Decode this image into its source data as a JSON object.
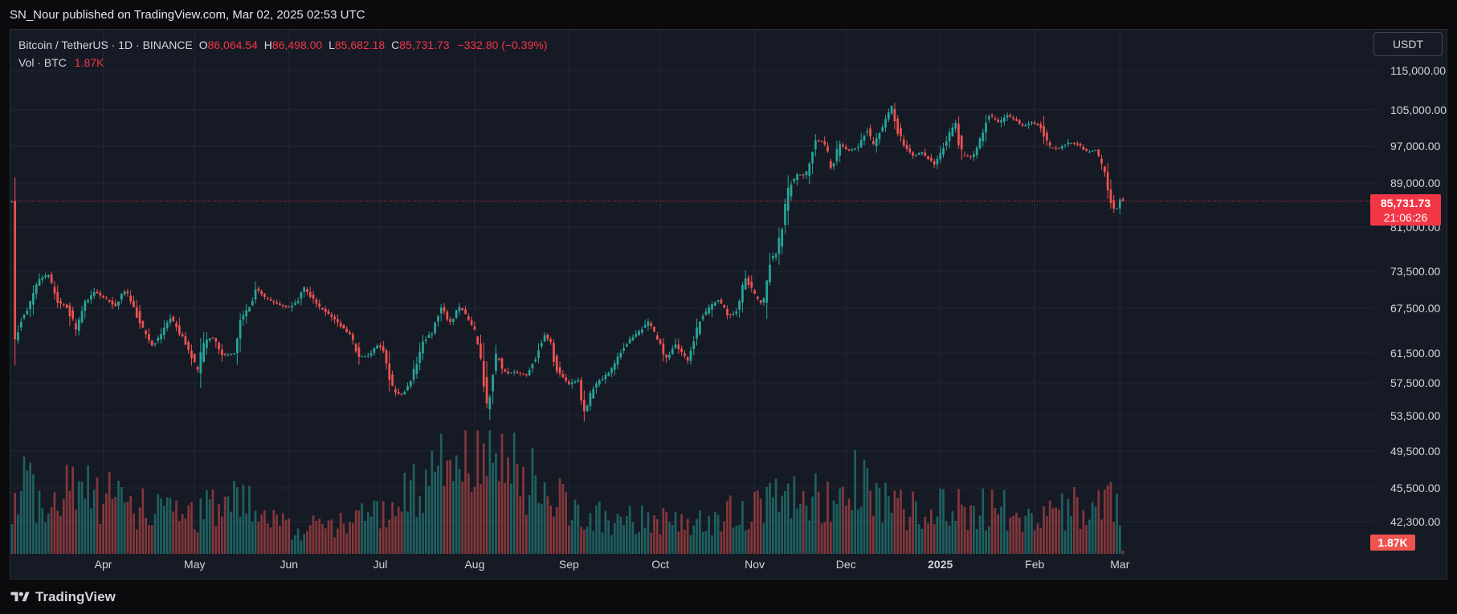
{
  "header": {
    "publisher_text": "SN_Nour published on TradingView.com, Mar 02, 2025 02:53 UTC"
  },
  "legend": {
    "symbol": "Bitcoin / TetherUS · 1D · BINANCE",
    "open_label": "O",
    "open": "86,064.54",
    "high_label": "H",
    "high": "86,498.00",
    "low_label": "L",
    "low": "85,682.18",
    "close_label": "C",
    "close": "85,731.73",
    "change": "−332.80 (−0.39%)",
    "vol_label": "Vol · BTC",
    "vol_value": "1.87K"
  },
  "currency": "USDT",
  "footer": {
    "brand": "TradingView"
  },
  "colors": {
    "up": "#26a69a",
    "down": "#ef5350",
    "price_tag": "#f23645",
    "grid": "#232734"
  },
  "chart_data": {
    "type": "candlestick",
    "symbol": "Bitcoin / TetherUS",
    "interval": "1D",
    "exchange": "BINANCE",
    "y_ticks": [
      115000,
      105000,
      97000,
      89000,
      81000,
      73500,
      67500,
      61500,
      57500,
      53500,
      49500,
      45500,
      42300
    ],
    "y_tick_labels": [
      "115,000.00",
      "105,000.00",
      "97,000.00",
      "89,000.00",
      "81,000.00",
      "73,500.00",
      "67,500.00",
      "61,500.00",
      "57,500.00",
      "53,500.00",
      "49,500.00",
      "45,500.00",
      "42,300.00"
    ],
    "x_ticks": [
      {
        "label": "Apr",
        "date": "2024-04-01"
      },
      {
        "label": "May",
        "date": "2024-05-01"
      },
      {
        "label": "Jun",
        "date": "2024-06-01"
      },
      {
        "label": "Jul",
        "date": "2024-07-01"
      },
      {
        "label": "Aug",
        "date": "2024-08-01"
      },
      {
        "label": "Sep",
        "date": "2024-09-01"
      },
      {
        "label": "Oct",
        "date": "2024-10-01"
      },
      {
        "label": "Nov",
        "date": "2024-11-01"
      },
      {
        "label": "Dec",
        "date": "2024-12-01"
      },
      {
        "label": "2025",
        "date": "2025-01-01"
      },
      {
        "label": "Feb",
        "date": "2025-02-01"
      },
      {
        "label": "Mar",
        "date": "2025-03-01"
      }
    ],
    "date_range": [
      "2024-03-02",
      "2025-03-02"
    ],
    "last_price": 85731.73,
    "last_price_label": "85,731.73",
    "countdown": "21:06:26",
    "volume_label": "1.87K",
    "volume_value": 1870,
    "close_path": [
      {
        "date": "2024-03-02",
        "close": 62000
      },
      {
        "date": "2024-03-05",
        "close": 66000
      },
      {
        "date": "2024-03-08",
        "close": 68200
      },
      {
        "date": "2024-03-11",
        "close": 72100
      },
      {
        "date": "2024-03-14",
        "close": 73000
      },
      {
        "date": "2024-03-17",
        "close": 68400
      },
      {
        "date": "2024-03-20",
        "close": 67900
      },
      {
        "date": "2024-03-23",
        "close": 64500
      },
      {
        "date": "2024-03-26",
        "close": 68500
      },
      {
        "date": "2024-03-29",
        "close": 70200
      },
      {
        "date": "2024-04-02",
        "close": 69000
      },
      {
        "date": "2024-04-05",
        "close": 67800
      },
      {
        "date": "2024-04-08",
        "close": 70500
      },
      {
        "date": "2024-04-10",
        "close": 69000
      },
      {
        "date": "2024-04-13",
        "close": 65500
      },
      {
        "date": "2024-04-17",
        "close": 62500
      },
      {
        "date": "2024-04-20",
        "close": 64000
      },
      {
        "date": "2024-04-23",
        "close": 66400
      },
      {
        "date": "2024-04-27",
        "close": 63500
      },
      {
        "date": "2024-04-30",
        "close": 61200
      },
      {
        "date": "2024-05-02",
        "close": 58500
      },
      {
        "date": "2024-05-04",
        "close": 63000
      },
      {
        "date": "2024-05-07",
        "close": 63700
      },
      {
        "date": "2024-05-10",
        "close": 61200
      },
      {
        "date": "2024-05-14",
        "close": 61500
      },
      {
        "date": "2024-05-16",
        "close": 65800
      },
      {
        "date": "2024-05-20",
        "close": 68500
      },
      {
        "date": "2024-05-21",
        "close": 70800
      },
      {
        "date": "2024-05-24",
        "close": 69200
      },
      {
        "date": "2024-05-28",
        "close": 68200
      },
      {
        "date": "2024-06-01",
        "close": 67600
      },
      {
        "date": "2024-06-04",
        "close": 68800
      },
      {
        "date": "2024-06-06",
        "close": 71000
      },
      {
        "date": "2024-06-08",
        "close": 69500
      },
      {
        "date": "2024-06-11",
        "close": 67600
      },
      {
        "date": "2024-06-14",
        "close": 66800
      },
      {
        "date": "2024-06-18",
        "close": 65100
      },
      {
        "date": "2024-06-21",
        "close": 64000
      },
      {
        "date": "2024-06-24",
        "close": 61000
      },
      {
        "date": "2024-06-27",
        "close": 61200
      },
      {
        "date": "2024-06-30",
        "close": 62600
      },
      {
        "date": "2024-07-02",
        "close": 62000
      },
      {
        "date": "2024-07-05",
        "close": 56500
      },
      {
        "date": "2024-07-08",
        "close": 56000
      },
      {
        "date": "2024-07-11",
        "close": 57500
      },
      {
        "date": "2024-07-15",
        "close": 63000
      },
      {
        "date": "2024-07-18",
        "close": 64200
      },
      {
        "date": "2024-07-21",
        "close": 67800
      },
      {
        "date": "2024-07-24",
        "close": 65500
      },
      {
        "date": "2024-07-27",
        "close": 67800
      },
      {
        "date": "2024-07-29",
        "close": 66500
      },
      {
        "date": "2024-08-01",
        "close": 64500
      },
      {
        "date": "2024-08-03",
        "close": 60500
      },
      {
        "date": "2024-08-05",
        "close": 54000
      },
      {
        "date": "2024-08-08",
        "close": 61500
      },
      {
        "date": "2024-08-11",
        "close": 58700
      },
      {
        "date": "2024-08-14",
        "close": 59000
      },
      {
        "date": "2024-08-18",
        "close": 58500
      },
      {
        "date": "2024-08-21",
        "close": 61000
      },
      {
        "date": "2024-08-24",
        "close": 64000
      },
      {
        "date": "2024-08-26",
        "close": 62800
      },
      {
        "date": "2024-08-28",
        "close": 59100
      },
      {
        "date": "2024-09-01",
        "close": 57300
      },
      {
        "date": "2024-09-04",
        "close": 57900
      },
      {
        "date": "2024-09-06",
        "close": 53900
      },
      {
        "date": "2024-09-09",
        "close": 57000
      },
      {
        "date": "2024-09-12",
        "close": 58100
      },
      {
        "date": "2024-09-15",
        "close": 59200
      },
      {
        "date": "2024-09-18",
        "close": 61800
      },
      {
        "date": "2024-09-21",
        "close": 63300
      },
      {
        "date": "2024-09-24",
        "close": 64300
      },
      {
        "date": "2024-09-27",
        "close": 65800
      },
      {
        "date": "2024-09-30",
        "close": 63300
      },
      {
        "date": "2024-10-03",
        "close": 60800
      },
      {
        "date": "2024-10-06",
        "close": 62800
      },
      {
        "date": "2024-10-10",
        "close": 60300
      },
      {
        "date": "2024-10-14",
        "close": 66000
      },
      {
        "date": "2024-10-17",
        "close": 67500
      },
      {
        "date": "2024-10-20",
        "close": 69000
      },
      {
        "date": "2024-10-23",
        "close": 66500
      },
      {
        "date": "2024-10-26",
        "close": 67000
      },
      {
        "date": "2024-10-29",
        "close": 72700
      },
      {
        "date": "2024-11-01",
        "close": 69500
      },
      {
        "date": "2024-11-04",
        "close": 67800
      },
      {
        "date": "2024-11-06",
        "close": 75600
      },
      {
        "date": "2024-11-08",
        "close": 76500
      },
      {
        "date": "2024-11-10",
        "close": 80400
      },
      {
        "date": "2024-11-12",
        "close": 88000
      },
      {
        "date": "2024-11-15",
        "close": 91000
      },
      {
        "date": "2024-11-18",
        "close": 90500
      },
      {
        "date": "2024-11-21",
        "close": 98300
      },
      {
        "date": "2024-11-24",
        "close": 97900
      },
      {
        "date": "2024-11-26",
        "close": 91900
      },
      {
        "date": "2024-11-29",
        "close": 97500
      },
      {
        "date": "2024-12-02",
        "close": 95900
      },
      {
        "date": "2024-12-05",
        "close": 96900
      },
      {
        "date": "2024-12-08",
        "close": 101100
      },
      {
        "date": "2024-12-10",
        "close": 96600
      },
      {
        "date": "2024-12-13",
        "close": 101400
      },
      {
        "date": "2024-12-16",
        "close": 106000
      },
      {
        "date": "2024-12-18",
        "close": 100200
      },
      {
        "date": "2024-12-20",
        "close": 97300
      },
      {
        "date": "2024-12-23",
        "close": 94900
      },
      {
        "date": "2024-12-26",
        "close": 95700
      },
      {
        "date": "2024-12-30",
        "close": 92800
      },
      {
        "date": "2025-01-02",
        "close": 96900
      },
      {
        "date": "2025-01-06",
        "close": 102200
      },
      {
        "date": "2025-01-08",
        "close": 95000
      },
      {
        "date": "2025-01-12",
        "close": 94500
      },
      {
        "date": "2025-01-15",
        "close": 100500
      },
      {
        "date": "2025-01-17",
        "close": 104000
      },
      {
        "date": "2025-01-20",
        "close": 102000
      },
      {
        "date": "2025-01-23",
        "close": 103900
      },
      {
        "date": "2025-01-26",
        "close": 102600
      },
      {
        "date": "2025-01-28",
        "close": 101300
      },
      {
        "date": "2025-01-31",
        "close": 102400
      },
      {
        "date": "2025-02-03",
        "close": 101400
      },
      {
        "date": "2025-02-06",
        "close": 96600
      },
      {
        "date": "2025-02-09",
        "close": 96500
      },
      {
        "date": "2025-02-12",
        "close": 97800
      },
      {
        "date": "2025-02-15",
        "close": 97500
      },
      {
        "date": "2025-02-18",
        "close": 95700
      },
      {
        "date": "2025-02-21",
        "close": 96200
      },
      {
        "date": "2025-02-24",
        "close": 91400
      },
      {
        "date": "2025-02-25",
        "close": 88700
      },
      {
        "date": "2025-02-26",
        "close": 84300
      },
      {
        "date": "2025-02-28",
        "close": 84400
      },
      {
        "date": "2025-03-01",
        "close": 86000
      },
      {
        "date": "2025-03-02",
        "close": 85731.73
      }
    ],
    "volume_path": [
      {
        "date": "2024-03-02",
        "value": 0.38
      },
      {
        "date": "2024-03-05",
        "value": 1.0
      },
      {
        "date": "2024-03-14",
        "value": 0.45
      },
      {
        "date": "2024-03-20",
        "value": 0.8
      },
      {
        "date": "2024-04-13",
        "value": 0.55
      },
      {
        "date": "2024-05-01",
        "value": 0.48
      },
      {
        "date": "2024-05-15",
        "value": 0.62
      },
      {
        "date": "2024-06-05",
        "value": 0.28
      },
      {
        "date": "2024-06-24",
        "value": 0.42
      },
      {
        "date": "2024-07-05",
        "value": 0.62
      },
      {
        "date": "2024-08-05",
        "value": 1.25
      },
      {
        "date": "2024-09-06",
        "value": 0.42
      },
      {
        "date": "2024-10-14",
        "value": 0.35
      },
      {
        "date": "2024-11-06",
        "value": 0.62
      },
      {
        "date": "2024-11-12",
        "value": 0.7
      },
      {
        "date": "2024-11-15",
        "value": 0.57
      },
      {
        "date": "2024-12-05",
        "value": 0.85
      },
      {
        "date": "2024-12-18",
        "value": 0.5
      },
      {
        "date": "2025-01-20",
        "value": 0.52
      },
      {
        "date": "2025-02-03",
        "value": 0.42
      },
      {
        "date": "2025-02-26",
        "value": 0.65
      },
      {
        "date": "2025-02-28",
        "value": 0.55
      },
      {
        "date": "2025-03-02",
        "value": 0.03
      }
    ]
  }
}
